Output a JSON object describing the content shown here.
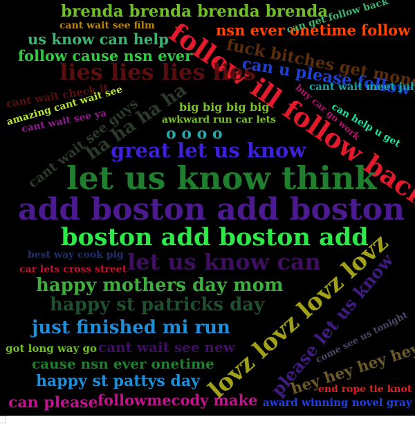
{
  "phrases": [
    {
      "text": "brenda brenda brenda brenda",
      "color": "#6fbf2b"
    },
    {
      "text": "cant wait see film",
      "color": "#b8860b"
    },
    {
      "text": "us know can help",
      "color": "#3cb371"
    },
    {
      "text": "follow cause nsn ever",
      "color": "#2ecc40"
    },
    {
      "text": "nsn ever onetime follow",
      "color": "#ff4500"
    },
    {
      "text": "can get follow back",
      "color": "#3cb371"
    },
    {
      "text": "follow ill follow back",
      "color": "#e3192c"
    },
    {
      "text": "fuck bitches get money",
      "color": "#5a2d0c"
    },
    {
      "text": "lies lies lies lies",
      "color": "#5a0f0f"
    },
    {
      "text": "can u please follow",
      "color": "#1f3fd0"
    },
    {
      "text": "cant wait meet july",
      "color": "#1aa3a3"
    },
    {
      "text": "cant wait check it",
      "color": "#5a0f0f"
    },
    {
      "text": "amazing cant wait see",
      "color": "#b8e62e"
    },
    {
      "text": "cant wait see ya",
      "color": "#8b1a8b"
    },
    {
      "text": "ha ha ha ha",
      "color": "#2b3a2b"
    },
    {
      "text": "cant wait see guys",
      "color": "#2b3a2b"
    },
    {
      "text": "big big big big",
      "color": "#7bbf2b"
    },
    {
      "text": "awkward run car lets",
      "color": "#7bbf2b"
    },
    {
      "text": "buy car go work",
      "color": "#b0126e"
    },
    {
      "text": "can help u get",
      "color": "#1ae0a0"
    },
    {
      "text": "o o o o",
      "color": "#2aa7a7"
    },
    {
      "text": "great let us know",
      "color": "#3f20d8"
    },
    {
      "text": "let us know think",
      "color": "#1f7f2f"
    },
    {
      "text": "add boston add boston",
      "color": "#4b1a8e"
    },
    {
      "text": "boston add boston add",
      "color": "#2ee84a"
    },
    {
      "text": "best way cook pig",
      "color": "#1f2f6f"
    },
    {
      "text": "car lets cross street",
      "color": "#c0142e"
    },
    {
      "text": "let us know can",
      "color": "#3f0f5f"
    },
    {
      "text": "happy mothers day mom",
      "color": "#3fae3f"
    },
    {
      "text": "happy st patricks day",
      "color": "#1f4f2f"
    },
    {
      "text": "lovz lovz lovz lovz",
      "color": "#a2a21a"
    },
    {
      "text": "just finished mi run",
      "color": "#1f8ed8"
    },
    {
      "text": "please let us know",
      "color": "#3f1a7f"
    },
    {
      "text": "got long way go",
      "color": "#6fbf2b"
    },
    {
      "text": "cant wait see new",
      "color": "#3f0f5f"
    },
    {
      "text": "cause nsn ever onetime",
      "color": "#1f7f2f"
    },
    {
      "text": "come see us tonight",
      "color": "#4a4a6a"
    },
    {
      "text": "hey hey hey hey",
      "color": "#6a5a2a"
    },
    {
      "text": "happy st pattys day",
      "color": "#1f8ed8"
    },
    {
      "text": "end rope tie knot",
      "color": "#e02020"
    },
    {
      "text": "can please",
      "color": "#c0148e"
    },
    {
      "text": "followmecody make",
      "color": "#c0148e"
    },
    {
      "text": "award winning novel gray",
      "color": "#2040e0"
    }
  ]
}
